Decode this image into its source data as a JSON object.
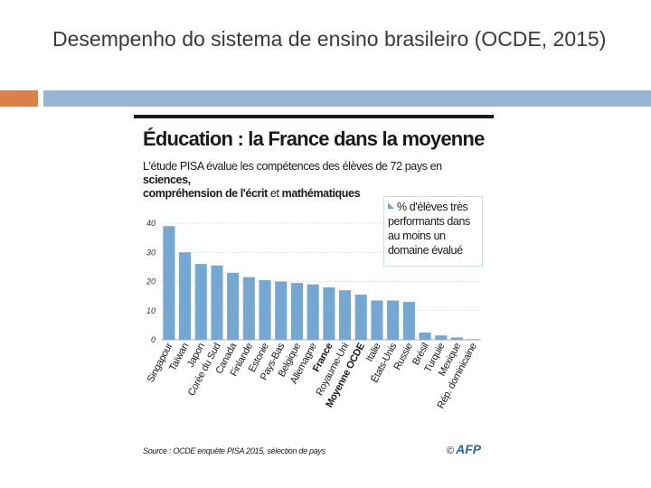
{
  "slide": {
    "title": "Desempenho do sistema de ensino brasileiro (OCDE, 2015)"
  },
  "colors": {
    "accent_orange": "#dd8047",
    "accent_blue": "#94b6d2",
    "bar_fill": "#74a8d3",
    "france_label": "#1a1a1a"
  },
  "chart_data": {
    "type": "bar",
    "title": "Éducation : la France dans la moyenne",
    "subtitle_plain_1": "L'étude PISA évalue les compétences des élèves de 72 pays en ",
    "subtitle_bold_1": "sciences,",
    "subtitle_bold_2": "compréhension de l'écrit",
    "subtitle_plain_2": " et ",
    "subtitle_bold_3": "mathématiques",
    "legend": "% d'élèves très performants dans au moins un domaine évalué",
    "categories": [
      "Singapour",
      "Taïwan",
      "Japon",
      "Corée du Sud",
      "Canada",
      "Finlande",
      "Estonie",
      "Pays-Bas",
      "Belgique",
      "Allemagne",
      "France",
      "Royaume-Uni",
      "Moyenne OCDE",
      "Italie",
      "États-Unis",
      "Russie",
      "Brésil",
      "Turquie",
      "Mexique",
      "Rép. dominicaine"
    ],
    "bold_categories": [
      "France",
      "Moyenne OCDE"
    ],
    "values": [
      39,
      30,
      26,
      25.5,
      23,
      21.5,
      20.5,
      20,
      19.5,
      19,
      18,
      17,
      15.5,
      13.5,
      13.5,
      13,
      2.5,
      1.5,
      0.8,
      0.2
    ],
    "y_ticks": [
      "0",
      "10",
      "20",
      "30",
      "40"
    ],
    "ylim": [
      0,
      40
    ],
    "grid": true,
    "source": "Source : OCDE enquête PISA 2015, sélection de pays",
    "logo": "AFP",
    "copyright": "©"
  }
}
